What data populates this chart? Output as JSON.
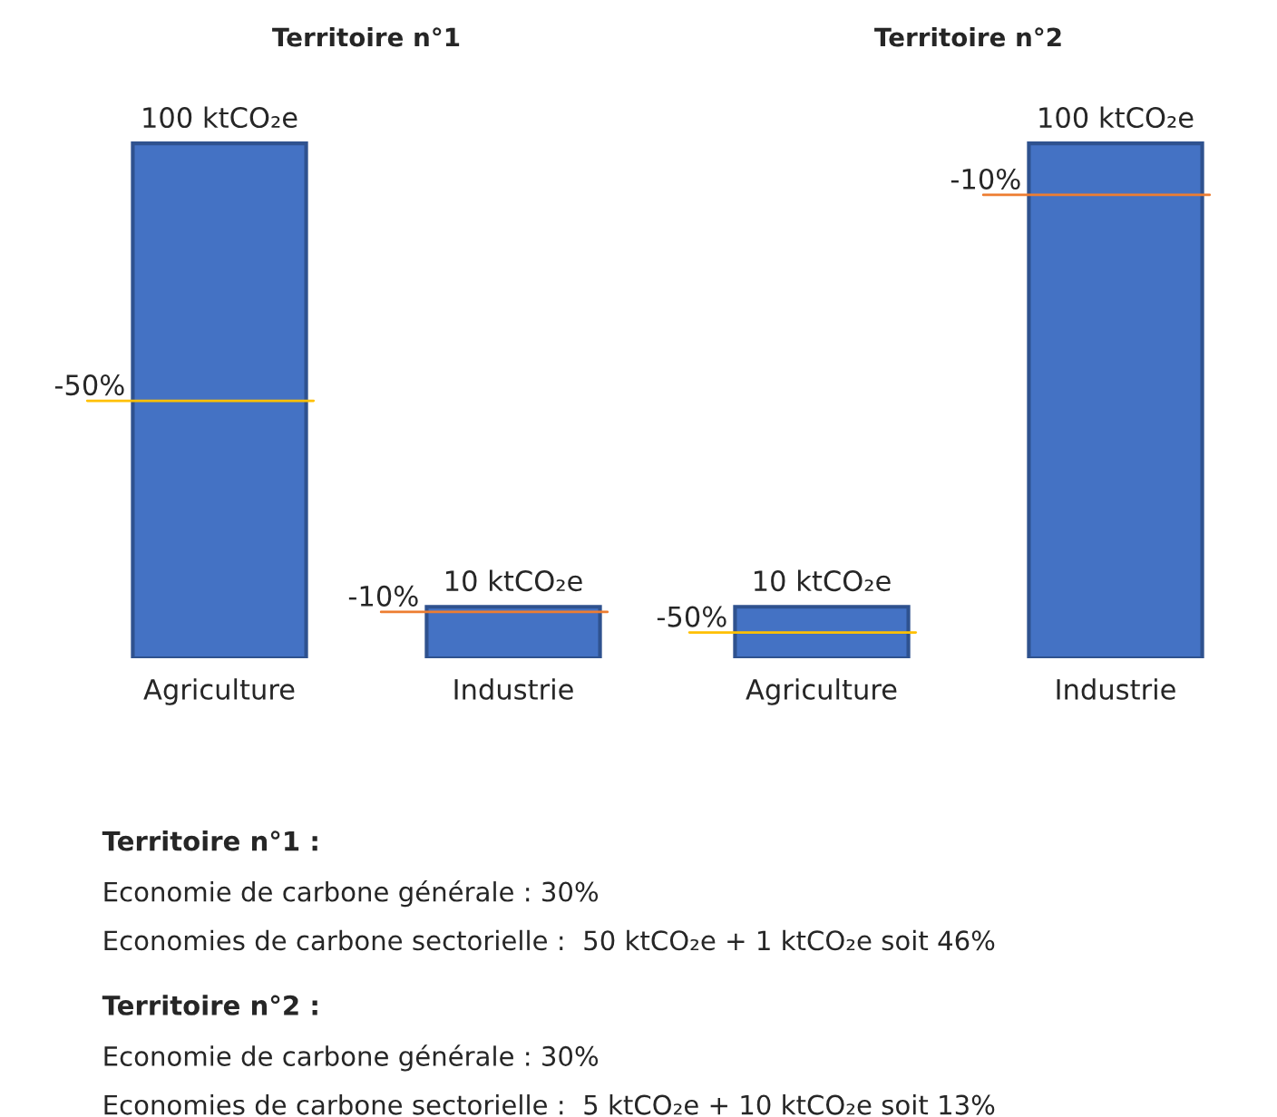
{
  "chart_data": [
    {
      "type": "bar",
      "title": "Territoire n°1",
      "categories": [
        "Agriculture",
        "Industrie"
      ],
      "values": [
        100,
        10
      ],
      "value_labels": [
        "100 ktCO₂e",
        "10 ktCO₂e"
      ],
      "color": "#4472c4",
      "ref_lines": [
        {
          "axis": "y",
          "value": 50,
          "color": "#ffc000"
        },
        {
          "axis": "y",
          "value": 9,
          "color": "#ed7d31"
        }
      ],
      "annotations": [
        "-50%",
        "-10%"
      ]
    },
    {
      "type": "bar",
      "title": "Territoire n°2",
      "categories": [
        "Agriculture",
        "Industrie"
      ],
      "values": [
        10,
        100
      ],
      "value_labels": [
        "10 ktCO₂e",
        "100 ktCO₂e"
      ],
      "color": "#4472c4",
      "ref_lines": [
        {
          "axis": "y",
          "value": 5,
          "color": "#ffc000"
        },
        {
          "axis": "y",
          "value": 90,
          "color": "#ed7d31"
        }
      ],
      "annotations": [
        "-50%",
        "-10%"
      ]
    },
    {
      "type": "other",
      "annotations": [
        "Territoire n°1 :",
        "Economie de carbone générale : 30%",
        "Economies de carbone sectorielle :  50 ktCO₂e + 1 ktCO₂e soit 46%",
        "Territoire n°2 :",
        "Economie de carbone générale : 30%",
        "Economies de carbone sectorielle :  5 ktCO₂e + 10 ktCO₂e soit 13%"
      ]
    }
  ]
}
